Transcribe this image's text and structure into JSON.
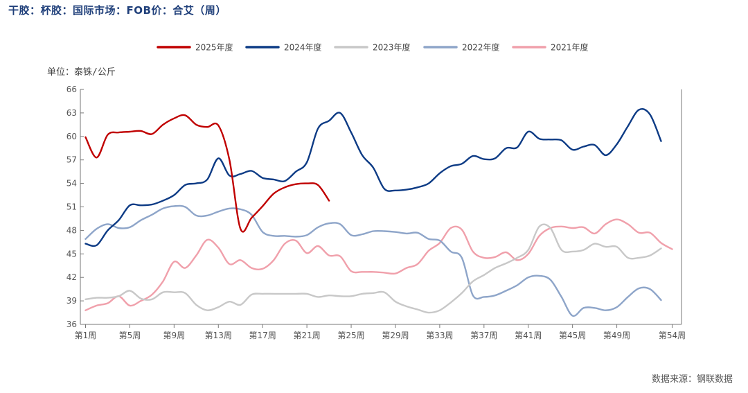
{
  "header": {
    "title": "干胶：杯胶：国际市场：FOB价：合艾（周）",
    "unit": "单位：泰铢/公斤",
    "source": "数据来源：钢联数据"
  },
  "chart_data": {
    "type": "line",
    "title": "干胶：杯胶：国际市场：FOB价：合艾（周）",
    "xlabel": "",
    "ylabel": "单位：泰铢/公斤",
    "ylim": [
      36,
      66
    ],
    "yticks": [
      36,
      39,
      42,
      45,
      48,
      51,
      54,
      57,
      60,
      63,
      66
    ],
    "xlim": [
      1,
      54
    ],
    "xtick_weeks": [
      1,
      5,
      9,
      13,
      17,
      21,
      25,
      29,
      33,
      37,
      41,
      45,
      49,
      54
    ],
    "xtick_labels": [
      "第1周",
      "第5周",
      "第9周",
      "第13周",
      "第17周",
      "第21周",
      "第25周",
      "第29周",
      "第33周",
      "第37周",
      "第41周",
      "第45周",
      "第49周",
      "第54周"
    ],
    "legend_position": "top-center",
    "series": [
      {
        "name": "2025年度",
        "color": "#c00000",
        "x": [
          1,
          2,
          3,
          4,
          5,
          6,
          7,
          8,
          9,
          10,
          11,
          12,
          13,
          14,
          15,
          16,
          17,
          18,
          19,
          20,
          21,
          22,
          23
        ],
        "values": [
          59.9,
          57.3,
          60.2,
          60.5,
          60.6,
          60.7,
          60.3,
          61.5,
          62.3,
          62.7,
          61.5,
          61.2,
          61.4,
          57.0,
          48.2,
          49.6,
          51.1,
          52.7,
          53.5,
          53.9,
          54.0,
          53.8,
          51.8
        ]
      },
      {
        "name": "2024年度",
        "color": "#0d3b85",
        "x": [
          1,
          2,
          3,
          4,
          5,
          6,
          7,
          8,
          9,
          10,
          11,
          12,
          13,
          14,
          15,
          16,
          17,
          18,
          19,
          20,
          21,
          22,
          23,
          24,
          25,
          26,
          27,
          28,
          29,
          30,
          31,
          32,
          33,
          34,
          35,
          36,
          37,
          38,
          39,
          40,
          41,
          42,
          43,
          44,
          45,
          46,
          47,
          48,
          49,
          50,
          51,
          52,
          53
        ],
        "values": [
          46.3,
          46.1,
          48.0,
          49.3,
          51.2,
          51.2,
          51.3,
          51.8,
          52.5,
          53.8,
          54.0,
          54.5,
          57.2,
          55.0,
          55.2,
          55.6,
          54.7,
          54.5,
          54.3,
          55.5,
          56.7,
          61.0,
          62.0,
          63.0,
          60.5,
          57.6,
          56.0,
          53.3,
          53.1,
          53.2,
          53.5,
          54.0,
          55.3,
          56.2,
          56.5,
          57.5,
          57.1,
          57.2,
          58.5,
          58.6,
          60.6,
          59.7,
          59.6,
          59.5,
          58.3,
          58.7,
          58.9,
          57.6,
          59.0,
          61.3,
          63.4,
          62.8,
          59.4
        ]
      },
      {
        "name": "2023年度",
        "color": "#c8c8c8",
        "x": [
          1,
          2,
          3,
          4,
          5,
          6,
          7,
          8,
          9,
          10,
          11,
          12,
          13,
          14,
          15,
          16,
          17,
          18,
          19,
          20,
          21,
          22,
          23,
          24,
          25,
          26,
          27,
          28,
          29,
          30,
          31,
          32,
          33,
          34,
          35,
          36,
          37,
          38,
          39,
          40,
          41,
          42,
          43,
          44,
          45,
          46,
          47,
          48,
          49,
          50,
          51,
          52,
          53
        ],
        "values": [
          39.2,
          39.4,
          39.4,
          39.6,
          40.3,
          39.3,
          39.2,
          40.1,
          40.1,
          40.0,
          38.5,
          37.8,
          38.2,
          38.9,
          38.5,
          39.8,
          39.9,
          39.9,
          39.9,
          39.9,
          39.9,
          39.5,
          39.7,
          39.6,
          39.6,
          39.9,
          40.0,
          40.1,
          38.9,
          38.3,
          37.9,
          37.5,
          37.8,
          38.8,
          40.0,
          41.5,
          42.3,
          43.2,
          43.8,
          44.5,
          45.5,
          48.5,
          48.3,
          45.5,
          45.3,
          45.5,
          46.3,
          45.9,
          45.9,
          44.5,
          44.5,
          44.8,
          45.7
        ]
      },
      {
        "name": "2022年度",
        "color": "#8ea5c9",
        "x": [
          1,
          2,
          3,
          4,
          5,
          6,
          7,
          8,
          9,
          10,
          11,
          12,
          13,
          14,
          15,
          16,
          17,
          18,
          19,
          20,
          21,
          22,
          23,
          24,
          25,
          26,
          27,
          28,
          29,
          30,
          31,
          32,
          33,
          34,
          35,
          36,
          37,
          38,
          39,
          40,
          41,
          42,
          43,
          44,
          45,
          46,
          47,
          48,
          49,
          50,
          51,
          52,
          53
        ],
        "values": [
          46.9,
          48.2,
          48.8,
          48.3,
          48.4,
          49.3,
          50.0,
          50.8,
          51.1,
          51.0,
          49.9,
          49.9,
          50.4,
          50.8,
          50.7,
          50.0,
          47.8,
          47.3,
          47.3,
          47.2,
          47.4,
          48.4,
          48.9,
          48.8,
          47.4,
          47.5,
          47.9,
          47.9,
          47.8,
          47.6,
          47.7,
          46.9,
          46.7,
          45.3,
          44.5,
          39.7,
          39.5,
          39.7,
          40.3,
          41.0,
          42.0,
          42.2,
          41.7,
          39.5,
          37.1,
          38.1,
          38.1,
          37.8,
          38.2,
          39.5,
          40.6,
          40.5,
          39.1
        ]
      },
      {
        "name": "2021年度",
        "color": "#f0a0ab",
        "x": [
          1,
          2,
          3,
          4,
          5,
          6,
          7,
          8,
          9,
          10,
          11,
          12,
          13,
          14,
          15,
          16,
          17,
          18,
          19,
          20,
          21,
          22,
          23,
          24,
          25,
          26,
          27,
          28,
          29,
          30,
          31,
          32,
          33,
          34,
          35,
          36,
          37,
          38,
          39,
          40,
          41,
          42,
          43,
          44,
          45,
          46,
          47,
          48,
          49,
          50,
          51,
          52,
          53,
          54
        ],
        "values": [
          37.8,
          38.4,
          38.7,
          39.6,
          38.4,
          39.0,
          39.8,
          41.5,
          44.0,
          43.2,
          44.8,
          46.8,
          45.8,
          43.7,
          44.2,
          43.2,
          43.1,
          44.2,
          46.3,
          46.7,
          45.1,
          46.0,
          44.8,
          44.7,
          42.8,
          42.7,
          42.7,
          42.6,
          42.5,
          43.2,
          43.7,
          45.4,
          46.4,
          48.3,
          48.1,
          45.3,
          44.5,
          44.6,
          45.2,
          44.2,
          45.0,
          47.3,
          48.3,
          48.5,
          48.3,
          48.4,
          47.6,
          48.8,
          49.4,
          48.8,
          47.7,
          47.7,
          46.4,
          45.6
        ]
      }
    ]
  }
}
